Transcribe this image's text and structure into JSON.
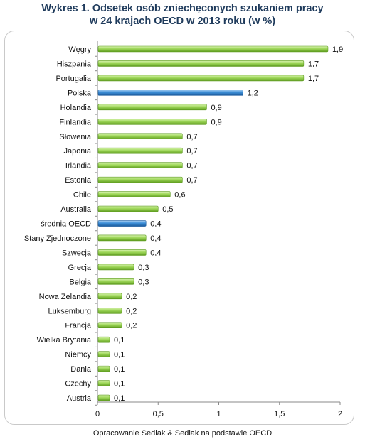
{
  "title_line1": "Wykres 1. Odsetek osób zniechęconych szukaniem pracy",
  "title_line2": "w 24 krajach OECD w 2013 roku (w %)",
  "source": "Opracowanie Sedlak & Sedlak na podstawie OECD",
  "colors": {
    "bar_green": "#9fd85a",
    "bar_green_dark": "#5e9c1f",
    "bar_blue": "#3d8fd8",
    "bar_blue_dark": "#1c5c9e",
    "axis": "#888888",
    "title": "#1f3b5c"
  },
  "chart_data": {
    "type": "bar",
    "orientation": "horizontal",
    "categories": [
      "Węgry",
      "Hiszpania",
      "Portugalia",
      "Polska",
      "Holandia",
      "Finlandia",
      "Słowenia",
      "Japonia",
      "Irlandia",
      "Estonia",
      "Chile",
      "Australia",
      "średnia OECD",
      "Stany Zjednoczone",
      "Szwecja",
      "Grecja",
      "Belgia",
      "Nowa Zelandia",
      "Luksemburg",
      "Francja",
      "Wielka Brytania",
      "Niemcy",
      "Dania",
      "Czechy",
      "Austria"
    ],
    "values": [
      1.9,
      1.7,
      1.7,
      1.2,
      0.9,
      0.9,
      0.7,
      0.7,
      0.7,
      0.7,
      0.6,
      0.5,
      0.4,
      0.4,
      0.4,
      0.3,
      0.3,
      0.2,
      0.2,
      0.2,
      0.1,
      0.1,
      0.1,
      0.1,
      0.1
    ],
    "value_labels": [
      "1,9",
      "1,7",
      "1,7",
      "1,2",
      "0,9",
      "0,9",
      "0,7",
      "0,7",
      "0,7",
      "0,7",
      "0,6",
      "0,5",
      "0,4",
      "0,4",
      "0,4",
      "0,3",
      "0,3",
      "0,2",
      "0,2",
      "0,2",
      "0,1",
      "0,1",
      "0,1",
      "0,1",
      "0,1"
    ],
    "highlighted": [
      "Polska",
      "średnia OECD"
    ],
    "xlim": [
      0,
      2
    ],
    "x_ticks": [
      0,
      0.5,
      1,
      1.5,
      2
    ],
    "x_tick_labels": [
      "0",
      "0,5",
      "1",
      "1,5",
      "2"
    ],
    "grid": false,
    "legend": "none"
  }
}
